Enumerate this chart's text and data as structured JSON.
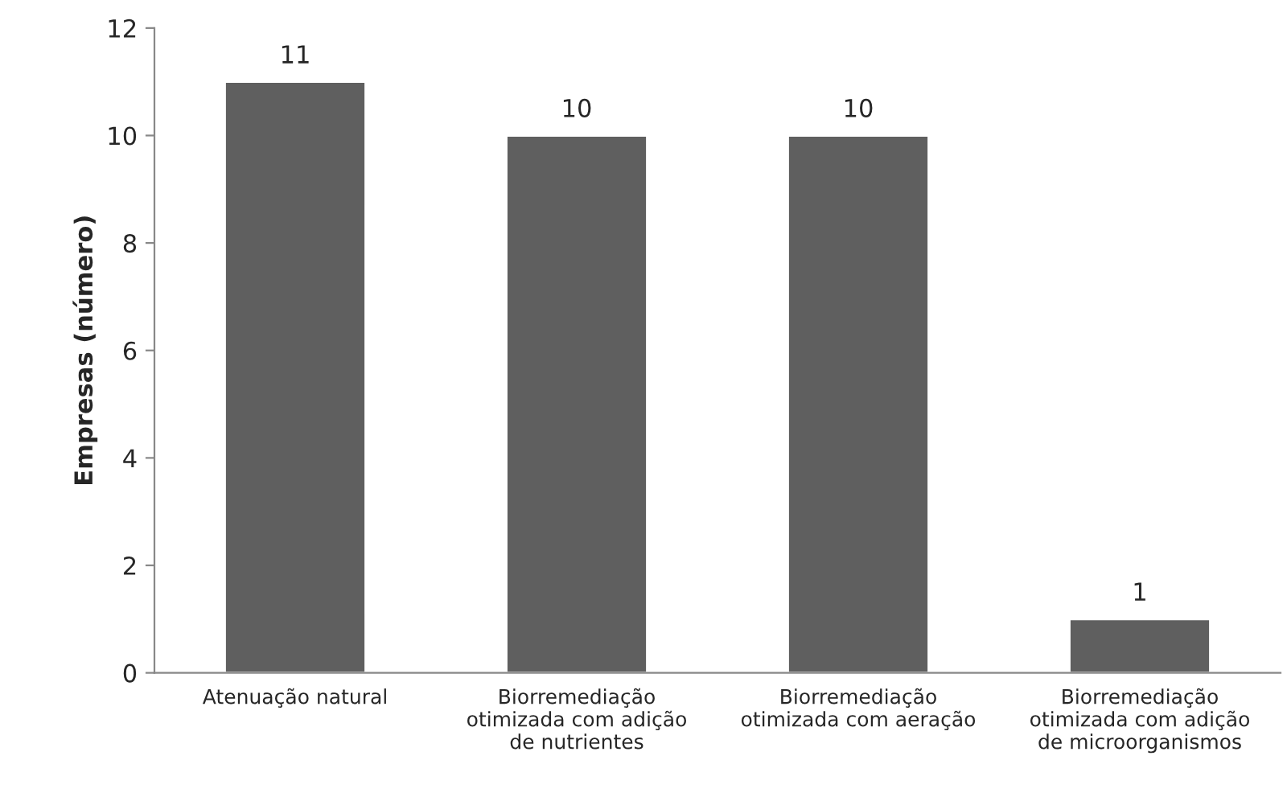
{
  "chart_data": {
    "type": "bar",
    "ylabel": "Empresas (número)",
    "categories": [
      "Atenuação natural",
      "Biorremediação\notimizada com adição\nde nutrientes",
      "Biorremediação\notimizada com aeração",
      "Biorremediação\notimizada com adição\nde microorganismos"
    ],
    "values": [
      11,
      10,
      10,
      1
    ],
    "color": "#5f5f5f",
    "ylim": [
      0,
      12
    ],
    "yticks": [
      0,
      2,
      4,
      6,
      8,
      10,
      12
    ],
    "data_labels": true,
    "grid": false
  }
}
